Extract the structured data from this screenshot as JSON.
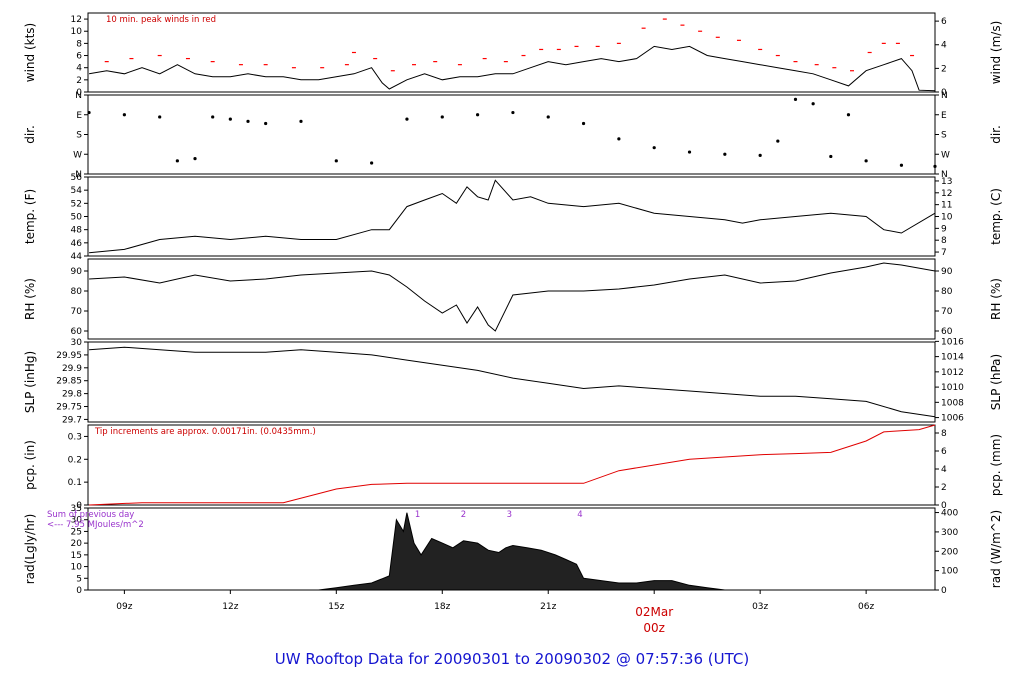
{
  "title": "UW Rooftop Data for 20090301  to  20090302 @ 07:57:36  (UTC)",
  "colors": {
    "title": "#1515d0",
    "precip": "#e00000",
    "note": "#cc0000",
    "date": "#cc0000",
    "sum": "#9933cc",
    "peak": "#ff0000"
  },
  "chart_data": {
    "type": "line",
    "title": "UW Rooftop Data for 20090301  to  20090302 @ 07:57:36  (UTC)",
    "x_range_hours": [
      7.97,
      31.95
    ],
    "x_ticks": [
      {
        "hour": 9,
        "label": "09z"
      },
      {
        "hour": 12,
        "label": "12z"
      },
      {
        "hour": 15,
        "label": "15z"
      },
      {
        "hour": 18,
        "label": "18z"
      },
      {
        "hour": 21,
        "label": "21z"
      },
      {
        "hour": 24,
        "label": "00z"
      },
      {
        "hour": 27,
        "label": "03z"
      },
      {
        "hour": 30,
        "label": "06z"
      }
    ],
    "date_label": "02Mar",
    "date_label_hour": 24,
    "panels": [
      {
        "id": "wind",
        "ylabel_left": "wind (kts)",
        "ylabel_right": "wind (m/s)",
        "left_ticks": [
          0,
          2,
          4,
          6,
          8,
          10,
          12
        ],
        "ylim": [
          0,
          13
        ],
        "right_ticks": [
          0,
          2,
          4,
          6
        ],
        "note": "10 min. peak winds in red",
        "points": [
          [
            8,
            3
          ],
          [
            8.5,
            3.5
          ],
          [
            9,
            3
          ],
          [
            9.5,
            4
          ],
          [
            10,
            3
          ],
          [
            10.5,
            4.5
          ],
          [
            11,
            3
          ],
          [
            11.5,
            2.5
          ],
          [
            12,
            2.5
          ],
          [
            12.5,
            3
          ],
          [
            13,
            2.5
          ],
          [
            13.5,
            2.5
          ],
          [
            14,
            2
          ],
          [
            14.5,
            2
          ],
          [
            15,
            2.5
          ],
          [
            15.5,
            3
          ],
          [
            16,
            4
          ],
          [
            16.3,
            1.5
          ],
          [
            16.5,
            0.5
          ],
          [
            17,
            2
          ],
          [
            17.5,
            3
          ],
          [
            18,
            2
          ],
          [
            18.5,
            2.5
          ],
          [
            19,
            2.5
          ],
          [
            19.5,
            3
          ],
          [
            20,
            3
          ],
          [
            20.5,
            4
          ],
          [
            21,
            5
          ],
          [
            21.5,
            4.5
          ],
          [
            22,
            5
          ],
          [
            22.5,
            5.5
          ],
          [
            23,
            5
          ],
          [
            23.5,
            5.5
          ],
          [
            24,
            7.5
          ],
          [
            24.5,
            7
          ],
          [
            25,
            7.5
          ],
          [
            25.5,
            6
          ],
          [
            26,
            5.5
          ],
          [
            26.5,
            5
          ],
          [
            27,
            4.5
          ],
          [
            27.5,
            4
          ],
          [
            28,
            3.5
          ],
          [
            28.5,
            3
          ],
          [
            29,
            2
          ],
          [
            29.5,
            1
          ],
          [
            30,
            3.5
          ],
          [
            30.5,
            4.5
          ],
          [
            31,
            5.5
          ],
          [
            31.3,
            3.5
          ],
          [
            31.5,
            0.3
          ],
          [
            31.95,
            0.2
          ]
        ],
        "peaks": [
          [
            8.5,
            5
          ],
          [
            9.2,
            5.5
          ],
          [
            10,
            6
          ],
          [
            10.8,
            5.5
          ],
          [
            11.5,
            5
          ],
          [
            12.3,
            4.5
          ],
          [
            13,
            4.5
          ],
          [
            13.8,
            4
          ],
          [
            14.6,
            4
          ],
          [
            15.3,
            4.5
          ],
          [
            15.5,
            6.5
          ],
          [
            16.1,
            5.5
          ],
          [
            16.6,
            3.5
          ],
          [
            17.2,
            4.5
          ],
          [
            17.8,
            5
          ],
          [
            18.5,
            4.5
          ],
          [
            19.2,
            5.5
          ],
          [
            19.8,
            5
          ],
          [
            20.3,
            6
          ],
          [
            20.8,
            7
          ],
          [
            21.3,
            7
          ],
          [
            21.8,
            7.5
          ],
          [
            22.4,
            7.5
          ],
          [
            23,
            8
          ],
          [
            23.7,
            10.5
          ],
          [
            24.3,
            12
          ],
          [
            24.8,
            11
          ],
          [
            25.3,
            10
          ],
          [
            25.8,
            9
          ],
          [
            26.4,
            8.5
          ],
          [
            27,
            7
          ],
          [
            27.5,
            6
          ],
          [
            28,
            5
          ],
          [
            28.6,
            4.5
          ],
          [
            29.1,
            4
          ],
          [
            29.6,
            3.5
          ],
          [
            30.1,
            6.5
          ],
          [
            30.5,
            8
          ],
          [
            30.9,
            8
          ],
          [
            31.3,
            6
          ]
        ]
      },
      {
        "id": "dir",
        "ylabel_left": "dir.",
        "ylabel_right": "dir.",
        "left_ticks": [
          "N",
          "W",
          "S",
          "E",
          "N"
        ],
        "ylim": [
          0,
          360
        ],
        "right_ticks": [
          "N",
          "W",
          "S",
          "E",
          "N"
        ],
        "points": [
          [
            8,
            280
          ],
          [
            9,
            270
          ],
          [
            10,
            260
          ],
          [
            10.5,
            60
          ],
          [
            11,
            70
          ],
          [
            11.5,
            260
          ],
          [
            12,
            250
          ],
          [
            12.5,
            240
          ],
          [
            13,
            230
          ],
          [
            14,
            240
          ],
          [
            15,
            60
          ],
          [
            16,
            50
          ],
          [
            17,
            250
          ],
          [
            18,
            260
          ],
          [
            19,
            270
          ],
          [
            20,
            280
          ],
          [
            21,
            260
          ],
          [
            22,
            230
          ],
          [
            23,
            160
          ],
          [
            24,
            120
          ],
          [
            25,
            100
          ],
          [
            26,
            90
          ],
          [
            27,
            85
          ],
          [
            27.5,
            150
          ],
          [
            28,
            340
          ],
          [
            28.5,
            320
          ],
          [
            29,
            80
          ],
          [
            29.5,
            270
          ],
          [
            30,
            60
          ],
          [
            31,
            40
          ],
          [
            31.95,
            35
          ]
        ]
      },
      {
        "id": "temp",
        "ylabel_left": "temp. (F)",
        "ylabel_right": "temp. (C)",
        "left_ticks": [
          44,
          46,
          48,
          50,
          52,
          54,
          56
        ],
        "ylim": [
          44,
          56
        ],
        "right_ticks": [
          7,
          8,
          9,
          10,
          11,
          12,
          13
        ],
        "points": [
          [
            8,
            44.5
          ],
          [
            9,
            45
          ],
          [
            10,
            46.5
          ],
          [
            11,
            47
          ],
          [
            12,
            46.5
          ],
          [
            13,
            47
          ],
          [
            14,
            46.5
          ],
          [
            15,
            46.5
          ],
          [
            16,
            48
          ],
          [
            16.5,
            48
          ],
          [
            17,
            51.5
          ],
          [
            17.5,
            52.5
          ],
          [
            18,
            53.5
          ],
          [
            18.4,
            52
          ],
          [
            18.7,
            54.5
          ],
          [
            19,
            53
          ],
          [
            19.3,
            52.5
          ],
          [
            19.5,
            55.5
          ],
          [
            20,
            52.5
          ],
          [
            20.5,
            53
          ],
          [
            21,
            52
          ],
          [
            22,
            51.5
          ],
          [
            23,
            52
          ],
          [
            24,
            50.5
          ],
          [
            25,
            50
          ],
          [
            26,
            49.5
          ],
          [
            26.5,
            49
          ],
          [
            27,
            49.5
          ],
          [
            28,
            50
          ],
          [
            29,
            50.5
          ],
          [
            30,
            50
          ],
          [
            30.5,
            48
          ],
          [
            31,
            47.5
          ],
          [
            31.95,
            50.5
          ]
        ]
      },
      {
        "id": "rh",
        "ylabel_left": "RH (%)",
        "ylabel_right": "RH (%)",
        "left_ticks": [
          60,
          70,
          80,
          90
        ],
        "ylim": [
          56,
          96
        ],
        "right_ticks": [
          60,
          70,
          80,
          90
        ],
        "points": [
          [
            8,
            86
          ],
          [
            9,
            87
          ],
          [
            10,
            84
          ],
          [
            11,
            88
          ],
          [
            12,
            85
          ],
          [
            13,
            86
          ],
          [
            14,
            88
          ],
          [
            15,
            89
          ],
          [
            16,
            90
          ],
          [
            16.5,
            88
          ],
          [
            17,
            82
          ],
          [
            17.5,
            75
          ],
          [
            18,
            69
          ],
          [
            18.4,
            73
          ],
          [
            18.7,
            64
          ],
          [
            19,
            72
          ],
          [
            19.3,
            63
          ],
          [
            19.5,
            60
          ],
          [
            20,
            78
          ],
          [
            20.5,
            79
          ],
          [
            21,
            80
          ],
          [
            22,
            80
          ],
          [
            23,
            81
          ],
          [
            24,
            83
          ],
          [
            25,
            86
          ],
          [
            26,
            88
          ],
          [
            27,
            84
          ],
          [
            28,
            85
          ],
          [
            29,
            89
          ],
          [
            30,
            92
          ],
          [
            30.5,
            94
          ],
          [
            31,
            93
          ],
          [
            31.95,
            90
          ]
        ]
      },
      {
        "id": "slp",
        "ylabel_left": "SLP (inHg)",
        "ylabel_right": "SLP (hPa)",
        "left_ticks": [
          29.7,
          29.75,
          29.8,
          29.85,
          29.9,
          29.95,
          30
        ],
        "ylim": [
          29.69,
          30.0
        ],
        "right_ticks": [
          1006,
          1008,
          1010,
          1012,
          1014,
          1016
        ],
        "points": [
          [
            8,
            29.97
          ],
          [
            9,
            29.98
          ],
          [
            10,
            29.97
          ],
          [
            11,
            29.96
          ],
          [
            12,
            29.96
          ],
          [
            13,
            29.96
          ],
          [
            14,
            29.97
          ],
          [
            15,
            29.96
          ],
          [
            16,
            29.95
          ],
          [
            17,
            29.93
          ],
          [
            18,
            29.91
          ],
          [
            19,
            29.89
          ],
          [
            20,
            29.86
          ],
          [
            21,
            29.84
          ],
          [
            22,
            29.82
          ],
          [
            23,
            29.83
          ],
          [
            24,
            29.82
          ],
          [
            25,
            29.81
          ],
          [
            26,
            29.8
          ],
          [
            27,
            29.79
          ],
          [
            28,
            29.79
          ],
          [
            29,
            29.78
          ],
          [
            30,
            29.77
          ],
          [
            31,
            29.73
          ],
          [
            31.95,
            29.71
          ]
        ]
      },
      {
        "id": "pcp",
        "ylabel_left": "pcp. (in)",
        "ylabel_right": "pcp. (mm)",
        "left_ticks": [
          0,
          0.1,
          0.2,
          0.3
        ],
        "ylim": [
          0,
          0.35
        ],
        "right_ticks": [
          0,
          2,
          4,
          6,
          8
        ],
        "note": "Tip increments are approx. 0.00171in. (0.0435mm.)",
        "points": [
          [
            8,
            0
          ],
          [
            9.5,
            0.01
          ],
          [
            13.5,
            0.01
          ],
          [
            14.5,
            0.05
          ],
          [
            15,
            0.07
          ],
          [
            16,
            0.09
          ],
          [
            17,
            0.095
          ],
          [
            20,
            0.095
          ],
          [
            22,
            0.095
          ],
          [
            23,
            0.15
          ],
          [
            24,
            0.175
          ],
          [
            25,
            0.2
          ],
          [
            26,
            0.21
          ],
          [
            27,
            0.22
          ],
          [
            28,
            0.225
          ],
          [
            29,
            0.23
          ],
          [
            30,
            0.28
          ],
          [
            30.5,
            0.32
          ],
          [
            31.5,
            0.33
          ],
          [
            31.95,
            0.35
          ]
        ]
      },
      {
        "id": "rad",
        "ylabel_left": "rad(Lgly/hr)",
        "ylabel_right": "rad (W/m^2)",
        "left_ticks": [
          0,
          5,
          10,
          15,
          20,
          25,
          30,
          35
        ],
        "ylim": [
          0,
          35
        ],
        "right_ticks": [
          0,
          100,
          200,
          300,
          400
        ],
        "sum_label": [
          "Sum of previous day",
          "<--- 7.95 MJoules/m^2"
        ],
        "markers": [
          {
            "hour": 17.3,
            "label": "1"
          },
          {
            "hour": 18.6,
            "label": "2"
          },
          {
            "hour": 19.9,
            "label": "3"
          },
          {
            "hour": 21.9,
            "label": "4"
          }
        ],
        "points": [
          [
            8,
            0
          ],
          [
            14.5,
            0
          ],
          [
            15,
            1
          ],
          [
            15.5,
            2
          ],
          [
            16,
            3
          ],
          [
            16.5,
            6
          ],
          [
            16.7,
            30
          ],
          [
            16.9,
            25
          ],
          [
            17,
            33
          ],
          [
            17.2,
            20
          ],
          [
            17.4,
            15
          ],
          [
            17.7,
            22
          ],
          [
            18,
            20
          ],
          [
            18.3,
            18
          ],
          [
            18.6,
            21
          ],
          [
            19,
            20
          ],
          [
            19.3,
            17
          ],
          [
            19.6,
            16
          ],
          [
            19.8,
            18
          ],
          [
            20,
            19
          ],
          [
            20.4,
            18
          ],
          [
            20.8,
            17
          ],
          [
            21.2,
            15
          ],
          [
            21.5,
            13
          ],
          [
            21.8,
            11
          ],
          [
            22,
            5
          ],
          [
            22.5,
            4
          ],
          [
            23,
            3
          ],
          [
            23.5,
            3
          ],
          [
            24,
            4
          ],
          [
            24.5,
            4
          ],
          [
            25,
            2
          ],
          [
            25.5,
            1
          ],
          [
            26,
            0
          ],
          [
            31.95,
            0
          ]
        ]
      }
    ]
  }
}
